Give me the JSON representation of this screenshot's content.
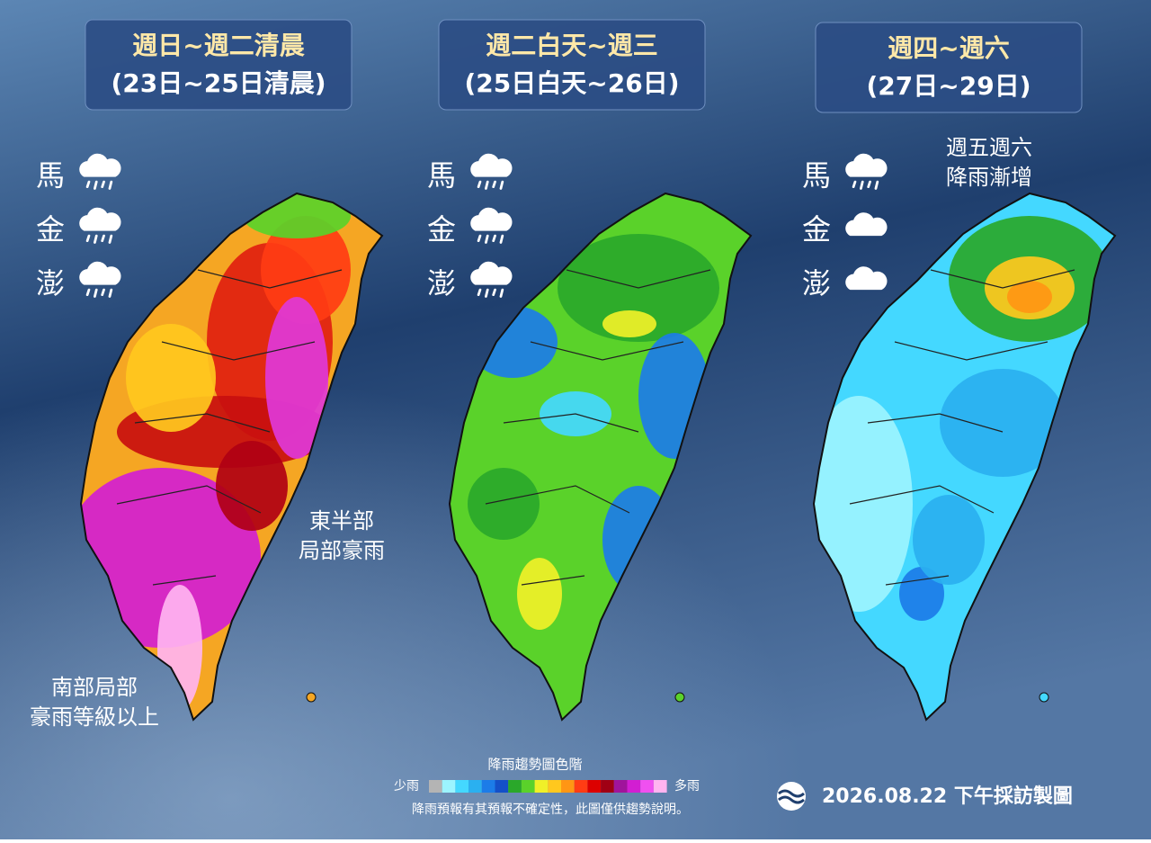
{
  "panels": [
    {
      "title": "週日~週二清晨",
      "subtitle": "(23日~25日清晨)",
      "islands": [
        {
          "label": "馬",
          "icon": "rain"
        },
        {
          "label": "金",
          "icon": "rain"
        },
        {
          "label": "澎",
          "icon": "rain"
        }
      ],
      "annotations": [
        [
          "東半部",
          "局部豪雨"
        ],
        [
          "南部局部",
          "豪雨等級以上"
        ]
      ]
    },
    {
      "title": "週二白天~週三",
      "subtitle": "(25日白天~26日)",
      "islands": [
        {
          "label": "馬",
          "icon": "rain"
        },
        {
          "label": "金",
          "icon": "rain"
        },
        {
          "label": "澎",
          "icon": "rain"
        }
      ],
      "annotations": []
    },
    {
      "title": "週四~週六",
      "subtitle": "(27日~29日)",
      "islands": [
        {
          "label": "馬",
          "icon": "rain"
        },
        {
          "label": "金",
          "icon": "cloud"
        },
        {
          "label": "澎",
          "icon": "cloud"
        }
      ],
      "annotations": [
        [
          "週五週六",
          "降雨漸增"
        ]
      ]
    }
  ],
  "legend": {
    "title": "降雨趨勢圖色階",
    "low": "少雨",
    "high": "多雨",
    "colors": [
      "#b4b4b4",
      "#9cf4ff",
      "#44d8ff",
      "#2ab0f0",
      "#1c7ce8",
      "#1450c8",
      "#2aa82a",
      "#5ad22a",
      "#f0f028",
      "#ffc81e",
      "#ff9614",
      "#ff3c14",
      "#dc0000",
      "#a00014",
      "#a0149b",
      "#d21ed2",
      "#f050f0",
      "#ffb4f0"
    ],
    "note": "降雨預報有其預報不確定性，此圖僅供趨勢說明。"
  },
  "footer": "2026.08.22 下午採訪製圖"
}
